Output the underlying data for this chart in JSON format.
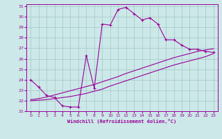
{
  "xlabel": "Windchill (Refroidissement éolien,°C)",
  "bg_color": "#cce8e8",
  "grid_color": "#aacccc",
  "line_color": "#990099",
  "xlim": [
    -0.5,
    23.5
  ],
  "ylim": [
    21,
    31.2
  ],
  "xticks": [
    0,
    1,
    2,
    3,
    4,
    5,
    6,
    7,
    8,
    9,
    10,
    11,
    12,
    13,
    14,
    15,
    16,
    17,
    18,
    19,
    20,
    21,
    22,
    23
  ],
  "yticks": [
    21,
    22,
    23,
    24,
    25,
    26,
    27,
    28,
    29,
    30,
    31
  ],
  "line1_x": [
    0,
    1,
    2,
    3,
    4,
    5,
    6,
    7,
    8,
    9,
    10,
    11,
    12,
    13,
    14,
    15,
    16,
    17,
    18,
    19,
    20,
    21,
    22,
    23
  ],
  "line1_y": [
    24.0,
    23.3,
    22.5,
    22.3,
    21.5,
    21.4,
    21.4,
    26.3,
    23.2,
    29.3,
    29.2,
    30.7,
    30.9,
    30.3,
    29.7,
    29.9,
    29.3,
    27.8,
    27.8,
    27.3,
    26.9,
    26.9,
    26.7,
    26.6
  ],
  "line2_x": [
    0,
    1,
    2,
    3,
    4,
    5,
    6,
    7,
    8,
    9,
    10,
    11,
    12,
    13,
    14,
    15,
    16,
    17,
    18,
    19,
    20,
    21,
    22,
    23
  ],
  "line2_y": [
    22.0,
    22.05,
    22.1,
    22.2,
    22.3,
    22.4,
    22.55,
    22.7,
    22.9,
    23.1,
    23.4,
    23.65,
    23.9,
    24.15,
    24.4,
    24.65,
    24.9,
    25.15,
    25.4,
    25.6,
    25.8,
    26.0,
    26.2,
    26.5
  ],
  "line3_x": [
    0,
    1,
    2,
    3,
    4,
    5,
    6,
    7,
    8,
    9,
    10,
    11,
    12,
    13,
    14,
    15,
    16,
    17,
    18,
    19,
    20,
    21,
    22,
    23
  ],
  "line3_y": [
    22.1,
    22.2,
    22.35,
    22.55,
    22.75,
    22.95,
    23.15,
    23.35,
    23.55,
    23.8,
    24.05,
    24.3,
    24.6,
    24.85,
    25.1,
    25.35,
    25.6,
    25.85,
    26.1,
    26.3,
    26.5,
    26.7,
    26.85,
    26.95
  ]
}
